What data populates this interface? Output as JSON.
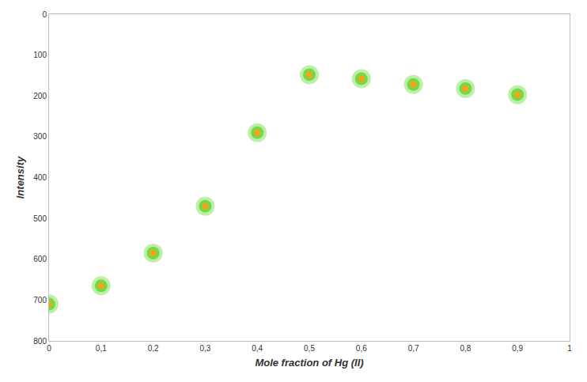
{
  "chart_data": {
    "type": "scatter",
    "x_label": "Mole fraction of Hg (II)",
    "y_label": "Intensity",
    "x": [
      0,
      0.1,
      0.2,
      0.3,
      0.4,
      0.5,
      0.6,
      0.7,
      0.8,
      0.9
    ],
    "values": [
      710,
      665,
      585,
      470,
      290,
      148,
      158,
      172,
      182,
      197
    ],
    "color": "#f5a31a",
    "marker": "circle",
    "xlim": [
      0,
      1
    ],
    "xticks": [
      0,
      {
        "value": 0.1,
        "label": "0,1"
      },
      {
        "value": 0.2,
        "label": "0,2"
      },
      {
        "value": 0.3,
        "label": "0,3"
      },
      {
        "value": 0.4,
        "label": "0,4"
      },
      {
        "value": 0.5,
        "label": "0,5"
      },
      {
        "value": 0.6,
        "label": "0,6"
      },
      {
        "value": 0.7,
        "label": "0,7"
      },
      {
        "value": 0.8,
        "label": "0,8"
      },
      {
        "value": 0.9,
        "label": "0,9"
      },
      1
    ],
    "ylim": [
      800,
      0
    ],
    "yticks": [
      0,
      100,
      200,
      300,
      400,
      500,
      600,
      700,
      800
    ],
    "grid": false
  }
}
